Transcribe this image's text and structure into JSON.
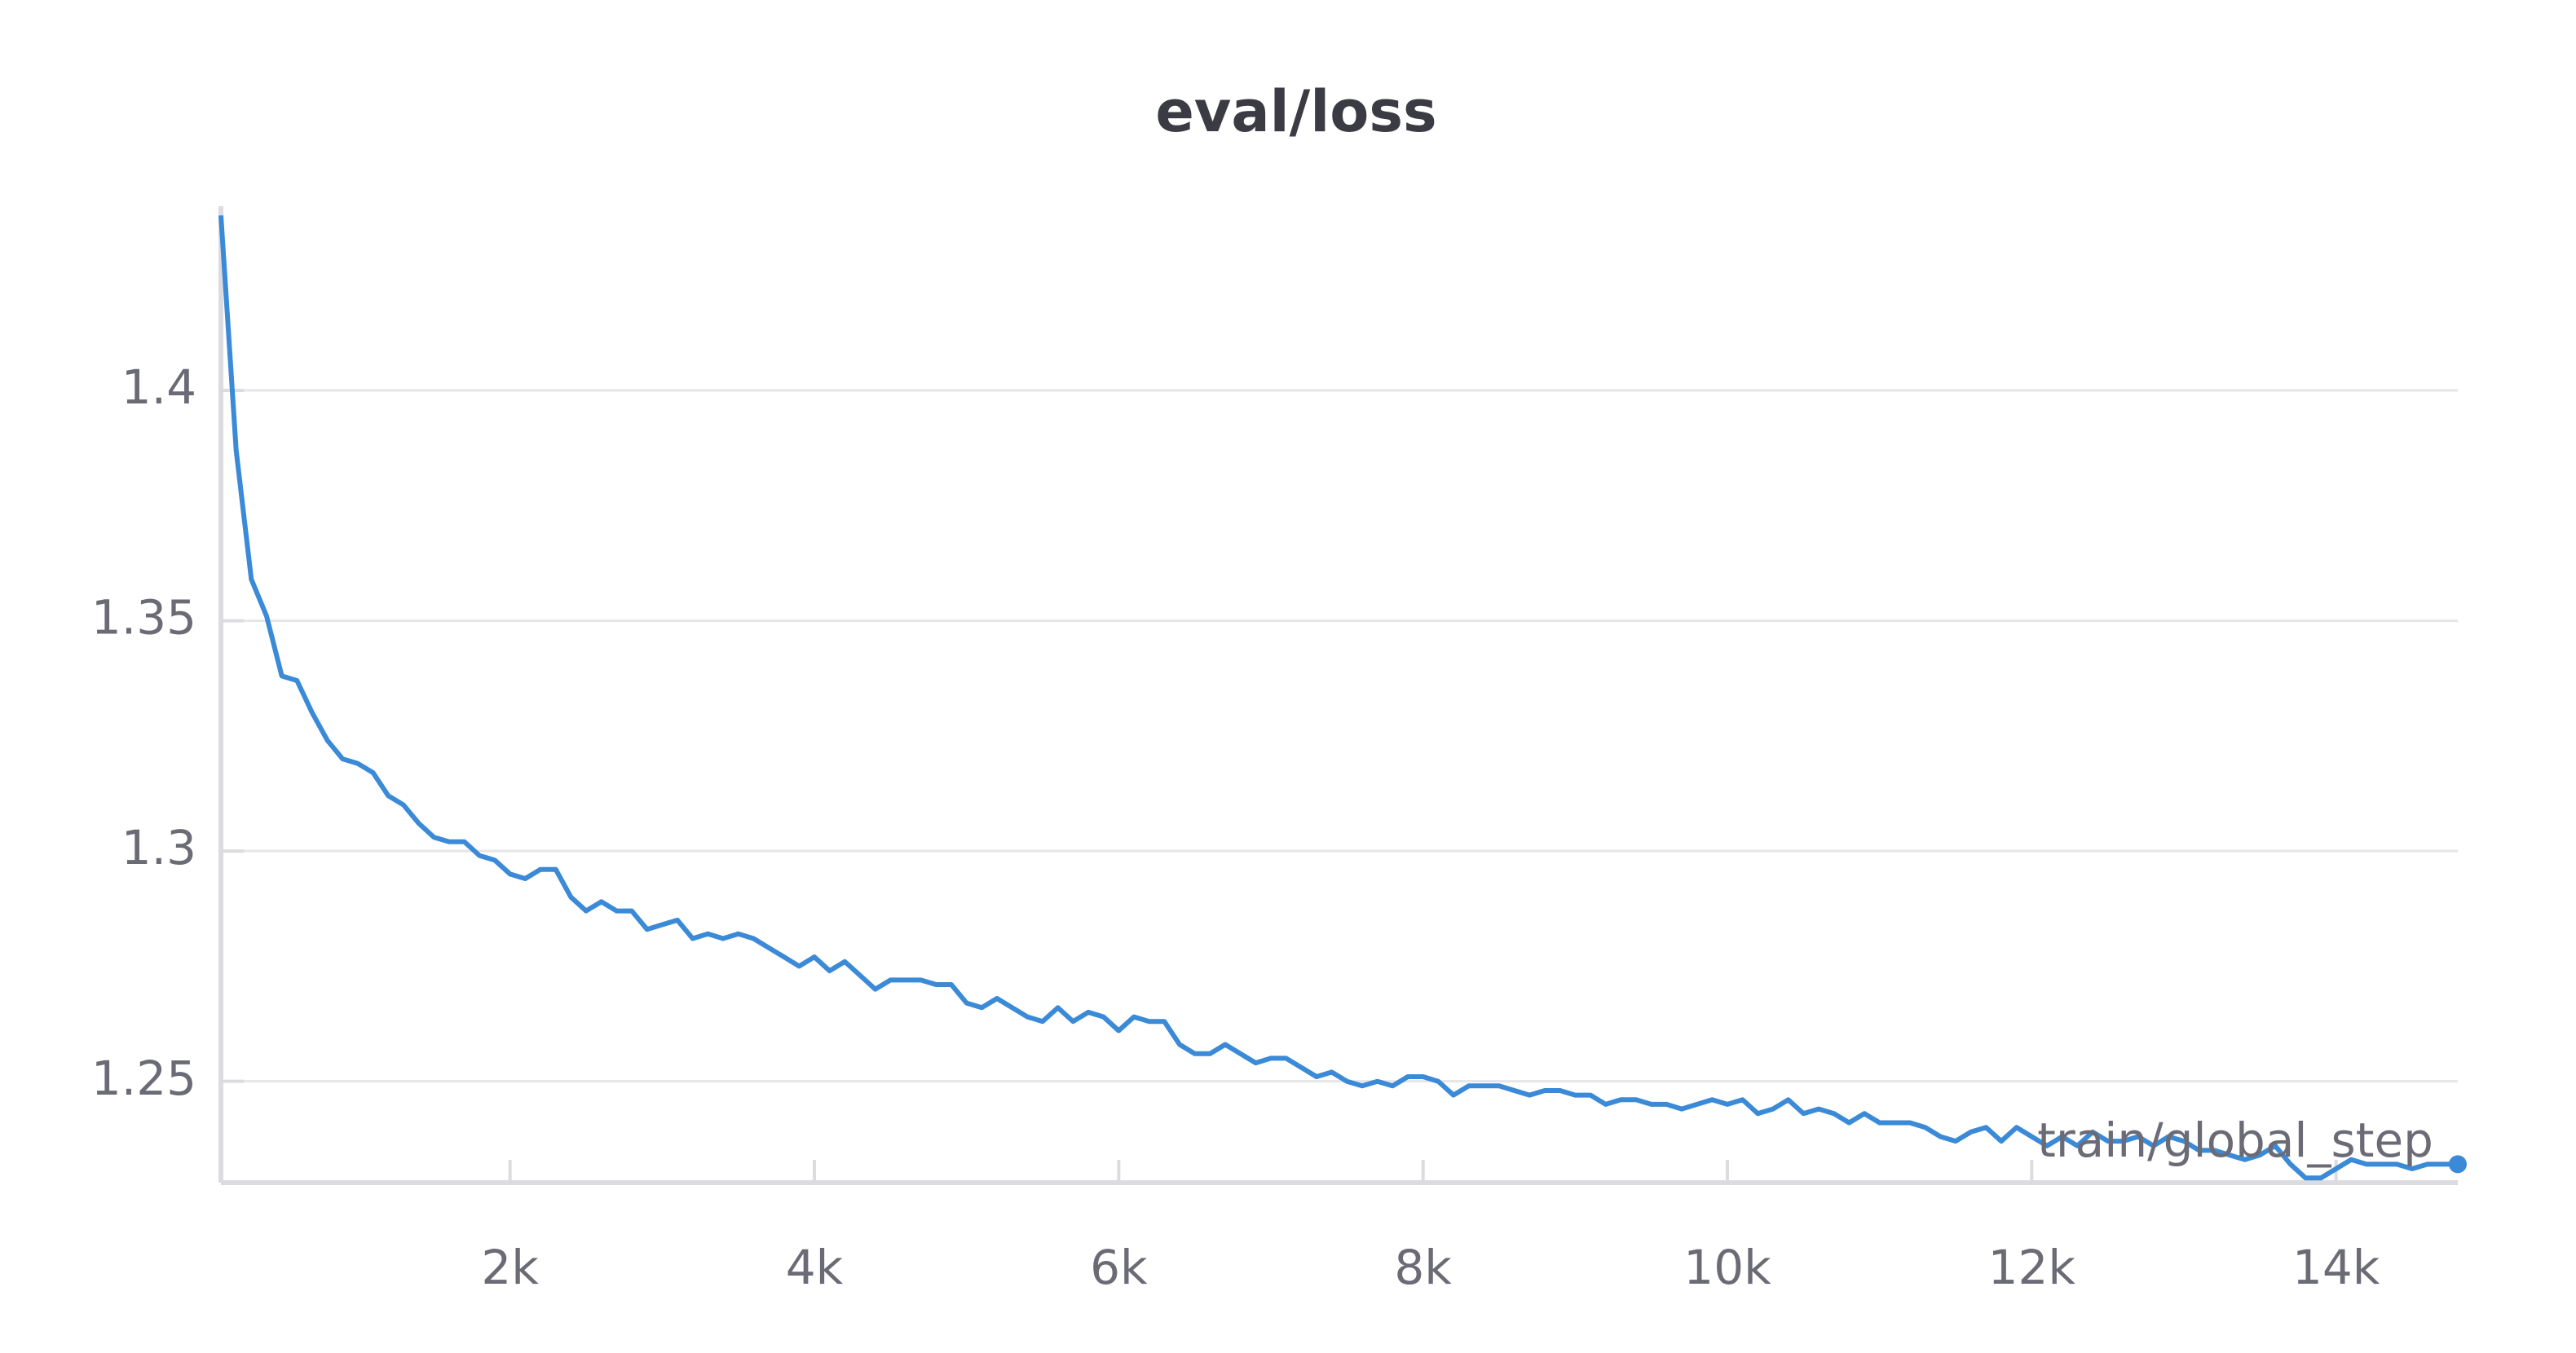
{
  "chart_data": {
    "type": "line",
    "title": "eval/loss",
    "x_label": "train/global_step",
    "x": [
      100,
      200,
      300,
      400,
      500,
      600,
      700,
      800,
      900,
      1000,
      1100,
      1200,
      1300,
      1400,
      1500,
      1600,
      1700,
      1800,
      1900,
      2000,
      2100,
      2200,
      2300,
      2400,
      2500,
      2600,
      2700,
      2800,
      2900,
      3000,
      3100,
      3200,
      3300,
      3400,
      3500,
      3600,
      3700,
      3800,
      3900,
      4000,
      4100,
      4200,
      4300,
      4400,
      4500,
      4600,
      4700,
      4800,
      4900,
      5000,
      5100,
      5200,
      5300,
      5400,
      5500,
      5600,
      5700,
      5800,
      5900,
      6000,
      6100,
      6200,
      6300,
      6400,
      6500,
      6600,
      6700,
      6800,
      6900,
      7000,
      7100,
      7200,
      7300,
      7400,
      7500,
      7600,
      7700,
      7800,
      7900,
      8000,
      8100,
      8200,
      8300,
      8400,
      8500,
      8600,
      8700,
      8800,
      8900,
      9000,
      9100,
      9200,
      9300,
      9400,
      9500,
      9600,
      9700,
      9800,
      9900,
      10000,
      10100,
      10200,
      10300,
      10400,
      10500,
      10600,
      10700,
      10800,
      10900,
      11000,
      11100,
      11200,
      11300,
      11400,
      11500,
      11600,
      11700,
      11800,
      11900,
      12000,
      12100,
      12200,
      12300,
      12400,
      12500,
      12600,
      12700,
      12800,
      12900,
      13000,
      13100,
      13200,
      13300,
      13400,
      13500,
      13600,
      13700,
      13800,
      13900,
      14000,
      14100,
      14200,
      14300,
      14400,
      14500,
      14600,
      14700,
      14800
    ],
    "series": [
      {
        "name": "eval/loss",
        "color": "#3a8ad8",
        "values": [
          1.438,
          1.387,
          1.359,
          1.351,
          1.338,
          1.337,
          1.33,
          1.324,
          1.32,
          1.319,
          1.317,
          1.312,
          1.31,
          1.306,
          1.303,
          1.302,
          1.302,
          1.299,
          1.298,
          1.295,
          1.294,
          1.296,
          1.296,
          1.29,
          1.287,
          1.289,
          1.287,
          1.287,
          1.283,
          1.284,
          1.285,
          1.281,
          1.282,
          1.281,
          1.282,
          1.281,
          1.279,
          1.277,
          1.275,
          1.277,
          1.274,
          1.276,
          1.273,
          1.27,
          1.272,
          1.272,
          1.272,
          1.271,
          1.271,
          1.267,
          1.266,
          1.268,
          1.266,
          1.264,
          1.263,
          1.266,
          1.263,
          1.265,
          1.264,
          1.261,
          1.264,
          1.263,
          1.263,
          1.258,
          1.256,
          1.256,
          1.258,
          1.256,
          1.254,
          1.255,
          1.255,
          1.253,
          1.251,
          1.252,
          1.25,
          1.249,
          1.25,
          1.249,
          1.251,
          1.251,
          1.25,
          1.247,
          1.249,
          1.249,
          1.249,
          1.248,
          1.247,
          1.248,
          1.248,
          1.247,
          1.247,
          1.245,
          1.246,
          1.246,
          1.245,
          1.245,
          1.244,
          1.245,
          1.246,
          1.245,
          1.246,
          1.243,
          1.244,
          1.246,
          1.243,
          1.244,
          1.243,
          1.241,
          1.243,
          1.241,
          1.241,
          1.241,
          1.24,
          1.238,
          1.237,
          1.239,
          1.24,
          1.237,
          1.24,
          1.238,
          1.236,
          1.238,
          1.236,
          1.239,
          1.237,
          1.237,
          1.238,
          1.236,
          1.238,
          1.237,
          1.235,
          1.235,
          1.234,
          1.233,
          1.234,
          1.236,
          1.232,
          1.229,
          1.229,
          1.231,
          1.233,
          1.232,
          1.232,
          1.232,
          1.231,
          1.232,
          1.232,
          1.232
        ]
      }
    ],
    "xlim": [
      100,
      14800
    ],
    "ylim": [
      1.228,
      1.44
    ],
    "xticks": [
      {
        "value": 2000,
        "label": "2k"
      },
      {
        "value": 4000,
        "label": "4k"
      },
      {
        "value": 6000,
        "label": "6k"
      },
      {
        "value": 8000,
        "label": "8k"
      },
      {
        "value": 10000,
        "label": "10k"
      },
      {
        "value": 12000,
        "label": "12k"
      },
      {
        "value": 14000,
        "label": "14k"
      }
    ],
    "yticks": [
      1.25,
      1.3,
      1.35,
      1.4
    ],
    "grid": true
  }
}
